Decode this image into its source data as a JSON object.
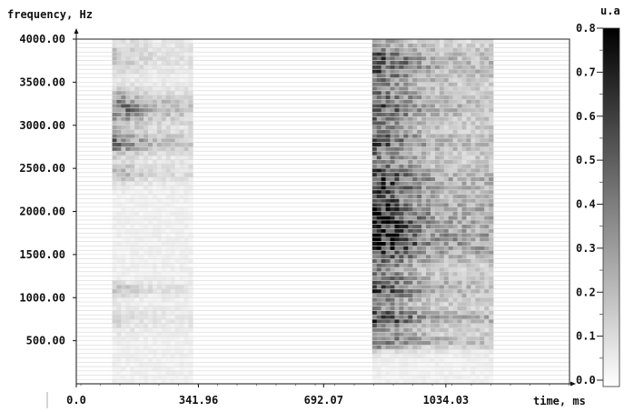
{
  "chart_data": {
    "type": "heatmap",
    "ylabel": "frequency, Hz",
    "xlabel": "time, ms",
    "colorbar_label": "u.a",
    "y_ticks": [
      "4000.00",
      "3500.00",
      "3000.00",
      "2500.00",
      "2000.00",
      "1500.00",
      "1000.00",
      "500.00"
    ],
    "y_tick_values": [
      4000,
      3500,
      3000,
      2500,
      2000,
      1500,
      1000,
      500
    ],
    "ylim": [
      0,
      4000
    ],
    "x_ticks": [
      "0.0",
      "341.96",
      "692.07",
      "1034.03"
    ],
    "x_tick_values": [
      0,
      341.96,
      692.07,
      1034.03
    ],
    "xlim": [
      0,
      1380
    ],
    "colorbar_ticks": [
      "0.8",
      "0.7",
      "0.6",
      "0.5",
      "0.4",
      "0.3",
      "0.2",
      "0.1",
      "0.0"
    ],
    "colorbar_values": [
      0.8,
      0.7,
      0.6,
      0.5,
      0.4,
      0.3,
      0.2,
      0.1,
      0.0
    ],
    "clim": [
      0,
      0.8
    ],
    "colormap": [
      "#ffffff",
      "#000000"
    ],
    "grid": true,
    "regions": [
      {
        "time_range": [
          100,
          320
        ],
        "formants": [
          {
            "freq": 3200,
            "peak": 0.45,
            "width": 180
          },
          {
            "freq": 2800,
            "peak": 0.4,
            "width": 140
          },
          {
            "freq": 2450,
            "peak": 0.2,
            "width": 120
          },
          {
            "freq": 3800,
            "peak": 0.15,
            "width": 200
          },
          {
            "freq": 1100,
            "peak": 0.15,
            "width": 80
          },
          {
            "freq": 750,
            "peak": 0.08,
            "width": 150
          }
        ]
      },
      {
        "time_range": [
          830,
          1170
        ],
        "formants": [
          {
            "freq": 3700,
            "peak": 0.5,
            "width": 300
          },
          {
            "freq": 3200,
            "peak": 0.45,
            "width": 200
          },
          {
            "freq": 2800,
            "peak": 0.45,
            "width": 200
          },
          {
            "freq": 2400,
            "peak": 0.45,
            "width": 200
          },
          {
            "freq": 2000,
            "peak": 0.55,
            "width": 300
          },
          {
            "freq": 1600,
            "peak": 0.6,
            "width": 250
          },
          {
            "freq": 1100,
            "peak": 0.5,
            "width": 200
          },
          {
            "freq": 750,
            "peak": 0.55,
            "width": 120
          },
          {
            "freq": 500,
            "peak": 0.45,
            "width": 100
          }
        ]
      }
    ]
  }
}
